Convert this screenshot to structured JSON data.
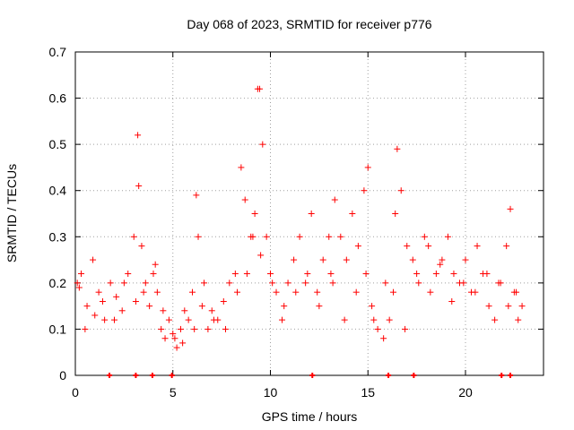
{
  "chart_data": {
    "type": "scatter",
    "title": "Day 068 of 2023, SRMTID for receiver p776",
    "xlabel": "GPS time / hours",
    "ylabel": "SRMTID / TECUs",
    "xlim": [
      0,
      24
    ],
    "ylim": [
      0,
      0.7
    ],
    "xticks": [
      0,
      5,
      10,
      15,
      20
    ],
    "xtick_labels": [
      "0",
      "5",
      "10",
      "15",
      "20"
    ],
    "yticks": [
      0,
      0.1,
      0.2,
      0.3,
      0.4,
      0.5,
      0.6,
      0.7
    ],
    "ytick_labels": [
      "0",
      "0.1",
      "0.2",
      "0.3",
      "0.4",
      "0.5",
      "0.6",
      "0.7"
    ],
    "grid": true,
    "marker": "+",
    "color": "#ff0000",
    "series": [
      {
        "name": "SRMTID",
        "x": [
          0.1,
          0.3,
          0.6,
          0.9,
          1.2,
          1.5,
          1.8,
          2.1,
          2.4,
          2.7,
          3.0,
          3.2,
          3.25,
          3.4,
          3.6,
          3.8,
          4.0,
          4.2,
          4.4,
          4.6,
          4.8,
          5.0,
          5.2,
          5.4,
          5.6,
          5.8,
          6.0,
          6.2,
          6.3,
          6.5,
          6.8,
          7.0,
          7.3,
          7.6,
          7.9,
          8.2,
          8.5,
          8.7,
          9.0,
          9.2,
          9.35,
          9.45,
          9.6,
          9.8,
          10.0,
          10.3,
          10.6,
          10.9,
          11.2,
          11.5,
          11.8,
          12.1,
          12.4,
          12.7,
          13.0,
          13.1,
          13.3,
          13.6,
          13.9,
          14.2,
          14.5,
          14.8,
          15.0,
          15.2,
          15.5,
          15.8,
          16.1,
          16.4,
          16.5,
          16.7,
          17.0,
          17.3,
          17.6,
          17.9,
          18.2,
          18.5,
          18.8,
          19.1,
          19.4,
          19.7,
          20.0,
          20.3,
          20.6,
          20.9,
          21.2,
          21.5,
          21.8,
          22.1,
          22.3,
          22.5,
          22.7,
          22.9,
          0.2,
          0.5,
          1.0,
          1.4,
          2.0,
          2.5,
          3.1,
          3.5,
          4.1,
          4.5,
          5.1,
          5.5,
          6.1,
          6.6,
          7.1,
          7.7,
          8.3,
          8.8,
          9.1,
          9.5,
          10.1,
          10.7,
          11.3,
          11.9,
          12.5,
          13.2,
          13.8,
          14.4,
          14.9,
          15.3,
          15.9,
          16.3,
          16.9,
          17.5,
          18.1,
          18.7,
          19.3,
          19.9,
          20.5,
          21.1,
          21.7,
          22.2,
          22.6
        ],
        "y": [
          0.2,
          0.22,
          0.15,
          0.25,
          0.18,
          0.12,
          0.2,
          0.17,
          0.14,
          0.22,
          0.3,
          0.52,
          0.41,
          0.28,
          0.2,
          0.15,
          0.22,
          0.18,
          0.1,
          0.08,
          0.12,
          0.09,
          0.06,
          0.1,
          0.14,
          0.12,
          0.18,
          0.39,
          0.3,
          0.15,
          0.1,
          0.14,
          0.12,
          0.16,
          0.2,
          0.22,
          0.45,
          0.38,
          0.3,
          0.35,
          0.62,
          0.62,
          0.5,
          0.3,
          0.22,
          0.18,
          0.12,
          0.2,
          0.25,
          0.3,
          0.2,
          0.35,
          0.18,
          0.25,
          0.3,
          0.22,
          0.38,
          0.3,
          0.25,
          0.35,
          0.28,
          0.4,
          0.45,
          0.15,
          0.1,
          0.08,
          0.12,
          0.35,
          0.49,
          0.4,
          0.28,
          0.25,
          0.2,
          0.3,
          0.18,
          0.22,
          0.25,
          0.3,
          0.22,
          0.2,
          0.25,
          0.18,
          0.28,
          0.22,
          0.15,
          0.12,
          0.2,
          0.28,
          0.36,
          0.18,
          0.12,
          0.15,
          0.19,
          0.1,
          0.13,
          0.16,
          0.12,
          0.2,
          0.16,
          0.18,
          0.24,
          0.14,
          0.08,
          0.07,
          0.1,
          0.2,
          0.12,
          0.1,
          0.18,
          0.22,
          0.3,
          0.26,
          0.2,
          0.15,
          0.18,
          0.22,
          0.15,
          0.2,
          0.12,
          0.18,
          0.22,
          0.12,
          0.2,
          0.18,
          0.1,
          0.22,
          0.28,
          0.24,
          0.16,
          0.2,
          0.18,
          0.22,
          0.2,
          0.15,
          0.18
        ]
      }
    ],
    "zero_markers_x": [
      1.75,
      3.1,
      3.95,
      4.95,
      12.15,
      16.05,
      17.35,
      21.85,
      22.3
    ]
  }
}
